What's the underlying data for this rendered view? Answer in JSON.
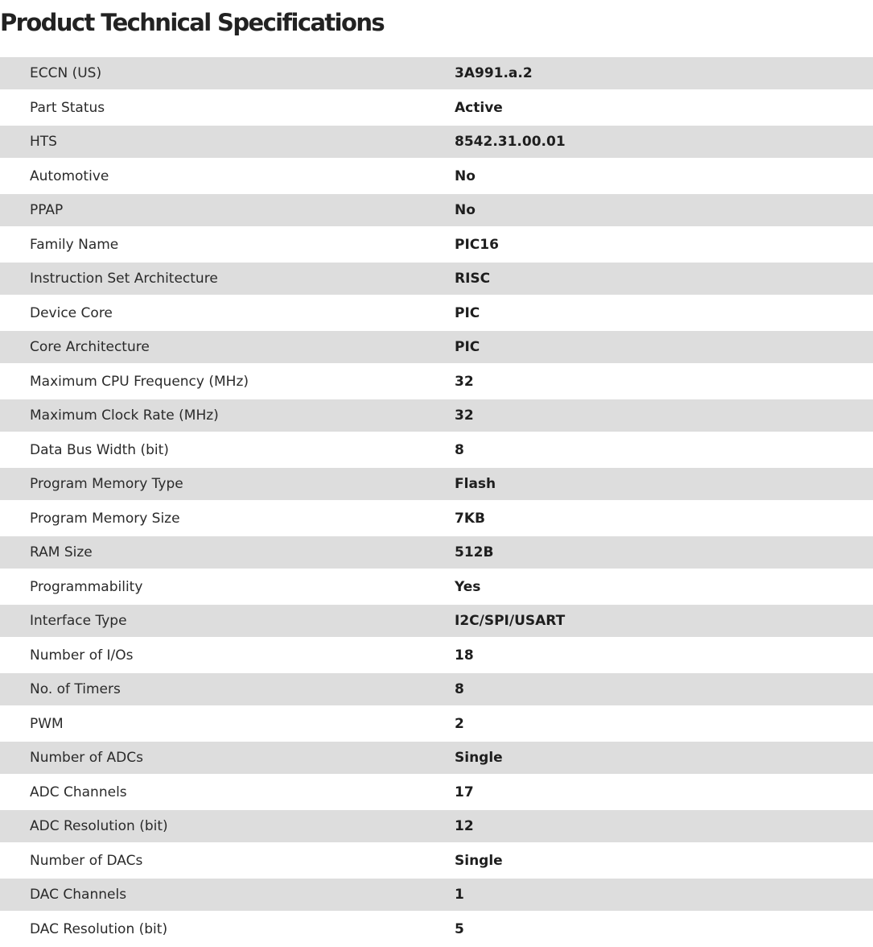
{
  "title": "Product Technical Specifications",
  "specs": [
    {
      "label": "ECCN (US)",
      "value": "3A991.a.2"
    },
    {
      "label": "Part Status",
      "value": "Active"
    },
    {
      "label": "HTS",
      "value": "8542.31.00.01"
    },
    {
      "label": "Automotive",
      "value": "No"
    },
    {
      "label": "PPAP",
      "value": "No"
    },
    {
      "label": "Family Name",
      "value": "PIC16"
    },
    {
      "label": "Instruction Set Architecture",
      "value": "RISC"
    },
    {
      "label": "Device Core",
      "value": "PIC"
    },
    {
      "label": "Core Architecture",
      "value": "PIC"
    },
    {
      "label": "Maximum CPU Frequency (MHz)",
      "value": "32"
    },
    {
      "label": "Maximum Clock Rate (MHz)",
      "value": "32"
    },
    {
      "label": "Data Bus Width (bit)",
      "value": "8"
    },
    {
      "label": "Program Memory Type",
      "value": "Flash"
    },
    {
      "label": "Program Memory Size",
      "value": "7KB"
    },
    {
      "label": "RAM Size",
      "value": "512B"
    },
    {
      "label": "Programmability",
      "value": "Yes"
    },
    {
      "label": "Interface Type",
      "value": "I2C/SPI/USART"
    },
    {
      "label": "Number of I/Os",
      "value": "18"
    },
    {
      "label": "No. of Timers",
      "value": "8"
    },
    {
      "label": "PWM",
      "value": "2"
    },
    {
      "label": "Number of ADCs",
      "value": "Single"
    },
    {
      "label": "ADC Channels",
      "value": "17"
    },
    {
      "label": "ADC Resolution (bit)",
      "value": "12"
    },
    {
      "label": "Number of DACs",
      "value": "Single"
    },
    {
      "label": "DAC Channels",
      "value": "1"
    },
    {
      "label": "DAC Resolution (bit)",
      "value": "5"
    }
  ]
}
